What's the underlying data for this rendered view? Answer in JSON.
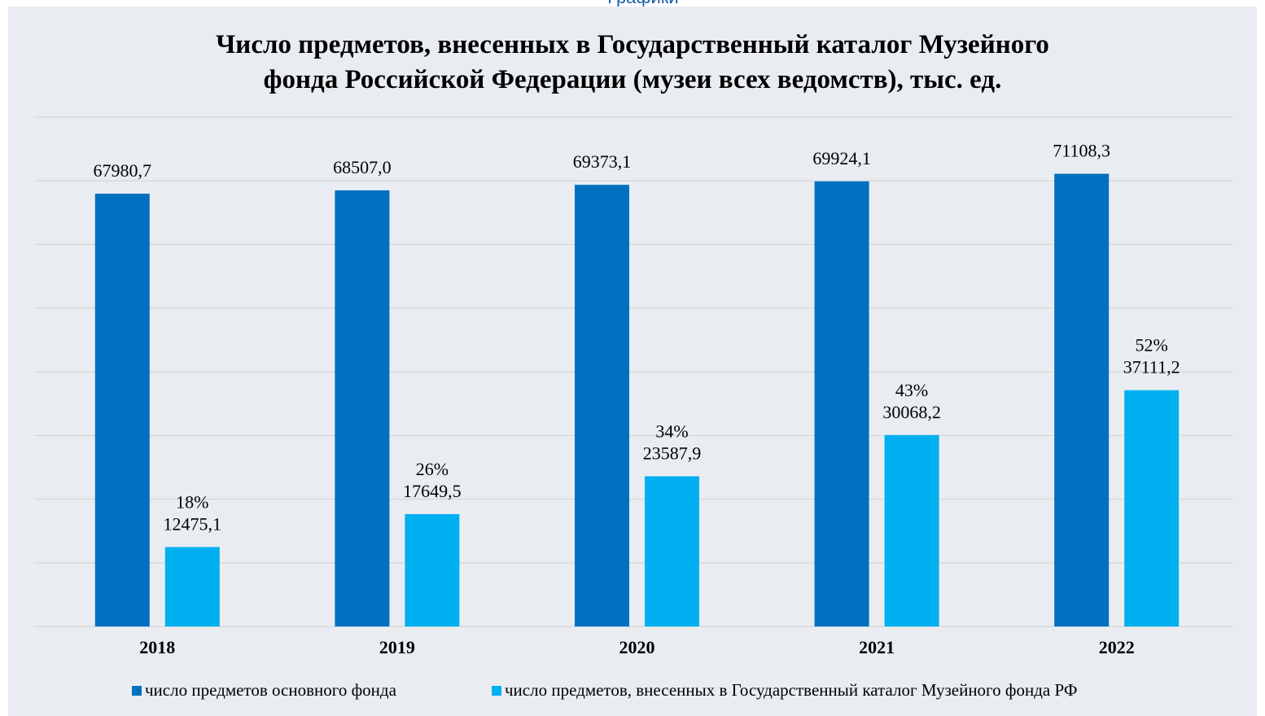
{
  "page_header": "Графики",
  "chart_data": {
    "type": "bar",
    "title": "Число предметов, внесенных в Государственный каталог Музейного фонда Российской Федерации (музеи всех ведомств), тыс. ед.",
    "categories": [
      "2018",
      "2019",
      "2020",
      "2021",
      "2022"
    ],
    "series": [
      {
        "name": "число предметов основного фонда",
        "color": "#0070c0",
        "values": [
          67980.7,
          68507.0,
          69373.1,
          69924.1,
          71108.3
        ],
        "value_labels": [
          "67980,7",
          "68507,0",
          "69373,1",
          "69924,1",
          "71108,3"
        ]
      },
      {
        "name": "число предметов, внесенных в Государственный каталог Музейного фонда РФ",
        "color": "#00b0f0",
        "values": [
          12475.1,
          17649.5,
          23587.9,
          30068.2,
          37111.2
        ],
        "value_labels": [
          "12475,1",
          "17649,5",
          "23587,9",
          "30068,2",
          "37111,2"
        ],
        "share_labels": [
          "18%",
          "26%",
          "34%",
          "43%",
          "52%"
        ]
      }
    ],
    "ylim": [
      0,
      80000
    ],
    "yticks": [
      0,
      10000,
      20000,
      30000,
      40000,
      50000,
      60000,
      70000,
      80000
    ],
    "grid": true,
    "legend": "bottom"
  }
}
